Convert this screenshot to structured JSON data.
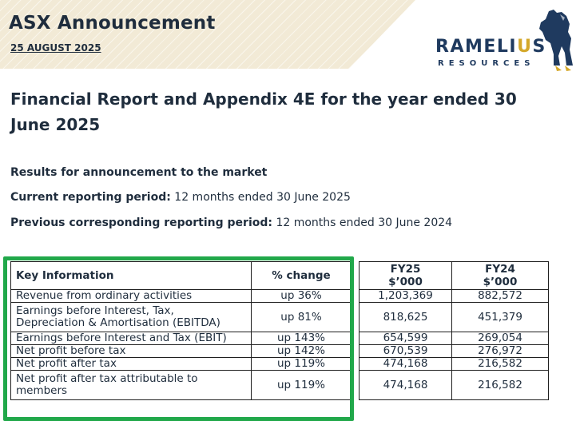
{
  "header": {
    "doc_type": "ASX Announcement",
    "date": "25 AUGUST 2025",
    "band_color": "#f2ead6"
  },
  "logo": {
    "word_part1": "RAMELI",
    "word_part2": "U",
    "word_part3": "S",
    "sub": "RESOURCES",
    "icon": "horse-icon",
    "brand_navy": "#1f3a5f",
    "brand_gold": "#d4a82a"
  },
  "title": "Financial Report and Appendix 4E for the year ended 30 June 2025",
  "results_heading": "Results for announcement to the market",
  "current_period": {
    "label": "Current reporting period:",
    "value": "12 months ended 30 June 2025"
  },
  "previous_period": {
    "label": "Previous corresponding reporting period:",
    "value": "12 months ended 30 June 2024"
  },
  "table": {
    "headers": {
      "key": "Key Information",
      "change": "% change",
      "fy25_line1": "FY25",
      "fy25_line2": "$’000",
      "fy24_line1": "FY24",
      "fy24_line2": "$’000"
    },
    "rows": [
      {
        "label": "Revenue from ordinary activities",
        "change": "up 36%",
        "fy25": "1,203,369",
        "fy24": "882,572"
      },
      {
        "label": "Earnings before Interest, Tax, Depreciation & Amortisation (EBITDA)",
        "change": "up 81%",
        "fy25": "818,625",
        "fy24": "451,379"
      },
      {
        "label": "Earnings before Interest and Tax (EBIT)",
        "change": "up 143%",
        "fy25": "654,599",
        "fy24": "269,054"
      },
      {
        "label": "Net profit before tax",
        "change": "up 142%",
        "fy25": "670,539",
        "fy24": "276,972"
      },
      {
        "label": "Net profit after tax",
        "change": "up 119%",
        "fy25": "474,168",
        "fy24": "216,582"
      },
      {
        "label": "Net profit after tax attributable to members",
        "change": "up 119%",
        "fy25": "474,168",
        "fy24": "216,582"
      }
    ],
    "highlight_color": "#21a84a"
  }
}
